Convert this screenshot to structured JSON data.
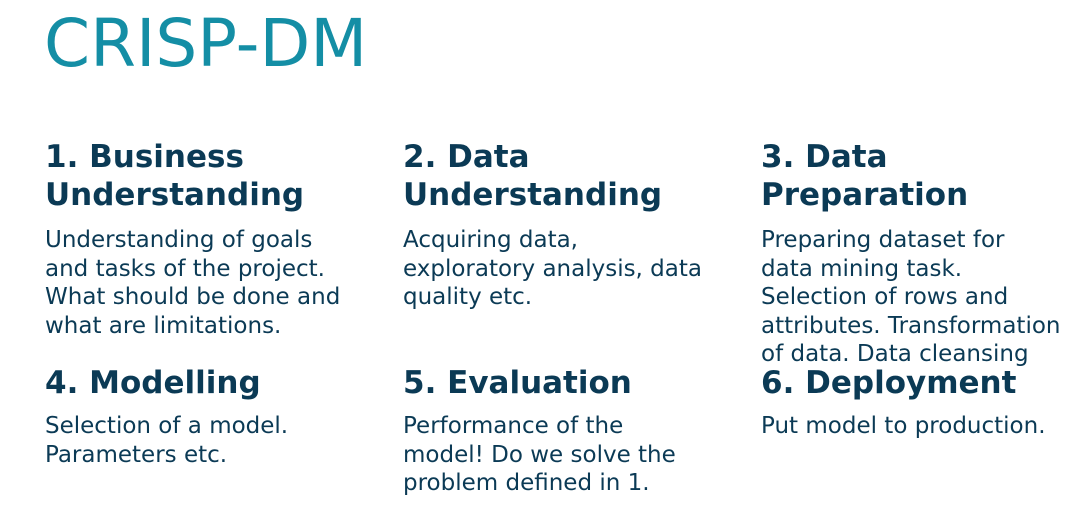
{
  "title": "CRISP-DM",
  "phases": [
    {
      "heading": [
        "1. Business",
        "Understanding"
      ],
      "body": [
        "Understanding of goals",
        "and tasks of the project.",
        "What should be done and",
        "what are limitations."
      ]
    },
    {
      "heading": [
        "2. Data",
        "Understanding"
      ],
      "body": [
        "Acquiring data,",
        "exploratory analysis, data",
        "quality etc."
      ]
    },
    {
      "heading": [
        "3. Data",
        "Preparation"
      ],
      "body": [
        "Preparing dataset for",
        "data mining task.",
        "Selection of rows and",
        "attributes. Transformation",
        "of data. Data cleansing"
      ]
    },
    {
      "heading": [
        "4. Modelling"
      ],
      "body": [
        "Selection of a model.",
        "Parameters etc."
      ]
    },
    {
      "heading": [
        "5. Evaluation"
      ],
      "body": [
        "Performance of the",
        "model! Do we solve the",
        "problem defined in 1."
      ]
    },
    {
      "heading": [
        "6. Deployment"
      ],
      "body": [
        "Put model to production."
      ]
    }
  ]
}
